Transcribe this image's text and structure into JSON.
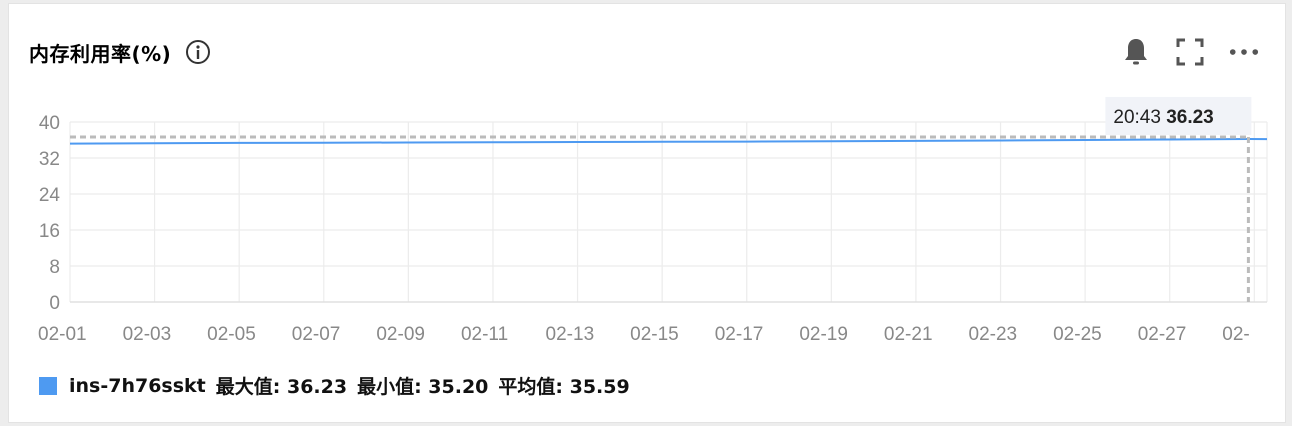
{
  "card": {
    "title": "内存利用率(%)",
    "icons": [
      "info-icon",
      "bell-icon",
      "fullscreen-icon",
      "more-icon"
    ]
  },
  "tooltip": {
    "time": "20:43",
    "value": "36.23"
  },
  "legend": {
    "series_name": "ins-7h76sskt",
    "max_label": "最大值: 36.23",
    "min_label": "最小值: 35.20",
    "avg_label": "平均值: 35.59"
  },
  "colors": {
    "series": "#4e9af1",
    "grid": "#ececec",
    "axis_text": "#888888"
  },
  "chart_data": {
    "type": "line",
    "title": "内存利用率(%)",
    "y_ticks": [
      "40",
      "32",
      "24",
      "16",
      "8",
      "0"
    ],
    "x_ticks": [
      "02-01",
      "02-03",
      "02-05",
      "02-07",
      "02-09",
      "02-11",
      "02-13",
      "02-15",
      "02-17",
      "02-19",
      "02-21",
      "02-23",
      "02-25",
      "02-27",
      "02-"
    ],
    "ylim": [
      0,
      40
    ],
    "xlim_days": [
      1,
      29.3
    ],
    "grid": true,
    "legend_position": "bottom-left",
    "series": [
      {
        "name": "ins-7h76sskt",
        "x_days": [
          1,
          3,
          5,
          7,
          9,
          11,
          13,
          15,
          17,
          19,
          21,
          23,
          25,
          27,
          28.86,
          29.3
        ],
        "values": [
          35.2,
          35.3,
          35.35,
          35.4,
          35.45,
          35.5,
          35.55,
          35.6,
          35.65,
          35.7,
          35.8,
          35.9,
          36.0,
          36.1,
          36.23,
          36.2
        ]
      }
    ],
    "annotation": {
      "x_day": 28.86,
      "y": 36.23,
      "label_time": "20:43",
      "label_value": "36.23"
    }
  }
}
